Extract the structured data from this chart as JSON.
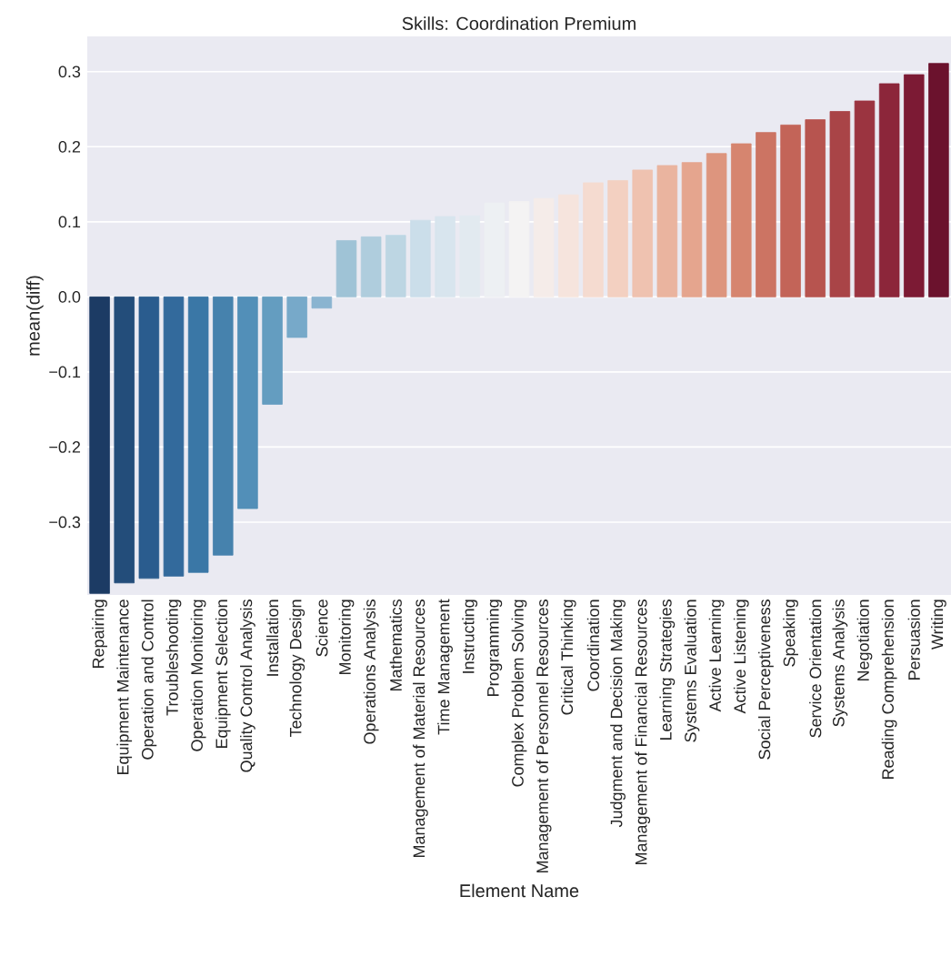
{
  "chart_data": {
    "type": "bar",
    "title": "Skills: Coordination Premium",
    "xlabel": "Element Name",
    "ylabel": "mean(diff)",
    "categories": [
      "Repairing",
      "Equipment Maintenance",
      "Operation and Control",
      "Troubleshooting",
      "Operation Monitoring",
      "Equipment Selection",
      "Quality Control Analysis",
      "Installation",
      "Technology Design",
      "Science",
      "Monitoring",
      "Operations Analysis",
      "Mathematics",
      "Management of Material Resources",
      "Time Management",
      "Instructing",
      "Programming",
      "Complex Problem Solving",
      "Management of Personnel Resources",
      "Critical Thinking",
      "Coordination",
      "Judgment and Decision Making",
      "Management of Financial Resources",
      "Learning Strategies",
      "Systems Evaluation",
      "Active Learning",
      "Active Listening",
      "Social Perceptiveness",
      "Speaking",
      "Service Orientation",
      "Systems Analysis",
      "Negotiation",
      "Reading Comprehension",
      "Persuasion",
      "Writing"
    ],
    "values": [
      -0.395,
      -0.381,
      -0.375,
      -0.372,
      -0.367,
      -0.344,
      -0.282,
      -0.143,
      -0.054,
      -0.015,
      0.075,
      0.08,
      0.082,
      0.102,
      0.107,
      0.108,
      0.125,
      0.127,
      0.131,
      0.136,
      0.152,
      0.155,
      0.169,
      0.175,
      0.179,
      0.191,
      0.204,
      0.219,
      0.229,
      0.236,
      0.247,
      0.261,
      0.284,
      0.296,
      0.311
    ],
    "colors": [
      "#1c3b64",
      "#234d7a",
      "#2a5c8e",
      "#336a9c",
      "#3a77a6",
      "#4682ad",
      "#528fb8",
      "#649dc0",
      "#77a9c9",
      "#8ab4d0",
      "#9fc3d6",
      "#afcddd",
      "#bdd6e3",
      "#cbdeea",
      "#d8e5ee",
      "#e2eaf0",
      "#edf0f3",
      "#f4f3f3",
      "#f5ece9",
      "#f6e4dd",
      "#f5dbd0",
      "#f3d0c1",
      "#efc2b0",
      "#eab49f",
      "#e5a58e",
      "#dd957e",
      "#d6856f",
      "#cc7463",
      "#c36458",
      "#b7544f",
      "#a94447",
      "#9b3440",
      "#8c263a",
      "#7c1a34",
      "#6b122d"
    ],
    "ylim": [
      -0.397,
      0.347
    ],
    "yticks": [
      {
        "value": -0.3,
        "label": "−0.3"
      },
      {
        "value": -0.2,
        "label": "−0.2"
      },
      {
        "value": -0.1,
        "label": "−0.1"
      },
      {
        "value": 0.0,
        "label": "0.0"
      },
      {
        "value": 0.1,
        "label": "0.1"
      },
      {
        "value": 0.2,
        "label": "0.2"
      },
      {
        "value": 0.3,
        "label": "0.3"
      }
    ],
    "grid": "y"
  }
}
